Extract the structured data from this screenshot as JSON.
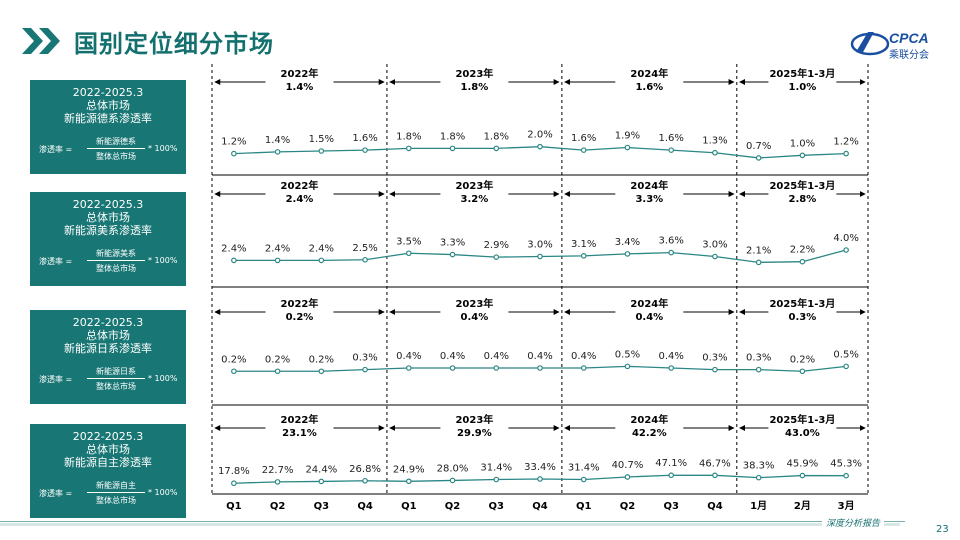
{
  "page": {
    "title": "国别定位细分市场",
    "page_number": "23",
    "footer": "深度分析报告"
  },
  "logo": {
    "text": "CPCA",
    "sub": "乘联分会"
  },
  "colors": {
    "accent": "#187674",
    "line": "#2a8785",
    "title": "#13706e"
  },
  "panels": [
    {
      "id": "de",
      "box": {
        "line1": "2022-2025.3",
        "line2": "总体市场",
        "line3": "新能源德系渗透率",
        "formula_lead": "渗透率 =",
        "numerator": "新能源德系",
        "denominator": "整体总市场",
        "multiplier": "* 100%"
      }
    },
    {
      "id": "us",
      "box": {
        "line1": "2022-2025.3",
        "line2": "总体市场",
        "line3": "新能源美系渗透率",
        "formula_lead": "渗透率 =",
        "numerator": "新能源美系",
        "denominator": "整体总市场",
        "multiplier": "* 100%"
      }
    },
    {
      "id": "jp",
      "box": {
        "line1": "2022-2025.3",
        "line2": "总体市场",
        "line3": "新能源日系渗透率",
        "formula_lead": "渗透率 =",
        "numerator": "新能源日系",
        "denominator": "整体总市场",
        "multiplier": "* 100%"
      }
    },
    {
      "id": "cn",
      "box": {
        "line1": "2022-2025.3",
        "line2": "总体市场",
        "line3": "新能源自主渗透率",
        "formula_lead": "渗透率 =",
        "numerator": "新能源自主",
        "denominator": "整体总市场",
        "multiplier": "* 100%"
      }
    }
  ],
  "chart_data": {
    "type": "line",
    "x": [
      "Q1",
      "Q2",
      "Q3",
      "Q4",
      "Q1",
      "Q2",
      "Q3",
      "Q4",
      "Q1",
      "Q2",
      "Q3",
      "Q4",
      "1月",
      "2月",
      "3月"
    ],
    "periods": [
      "2022年",
      "2023年",
      "2024年",
      "2025年1-3月"
    ],
    "series": [
      {
        "name": "新能源德系渗透率",
        "values": [
          1.2,
          1.4,
          1.5,
          1.6,
          1.8,
          1.8,
          1.8,
          2.0,
          1.6,
          1.9,
          1.6,
          1.3,
          0.7,
          1.0,
          1.2
        ],
        "labels": [
          "1.2%",
          "1.4%",
          "1.5%",
          "1.6%",
          "1.8%",
          "1.8%",
          "1.8%",
          "2.0%",
          "1.6%",
          "1.9%",
          "1.6%",
          "1.3%",
          "0.7%",
          "1.0%",
          "1.2%"
        ],
        "period_values": [
          "1.4%",
          "1.8%",
          "1.6%",
          "1.0%"
        ],
        "ylim": [
          0,
          6
        ]
      },
      {
        "name": "新能源美系渗透率",
        "values": [
          2.4,
          2.4,
          2.4,
          2.5,
          3.5,
          3.3,
          2.9,
          3.0,
          3.1,
          3.4,
          3.6,
          3.0,
          2.1,
          2.2,
          4.0
        ],
        "labels": [
          "2.4%",
          "2.4%",
          "2.4%",
          "2.5%",
          "3.5%",
          "3.3%",
          "2.9%",
          "3.0%",
          "3.1%",
          "3.4%",
          "3.6%",
          "3.0%",
          "2.1%",
          "2.2%",
          "4.0%"
        ],
        "period_values": [
          "2.4%",
          "3.2%",
          "3.3%",
          "2.8%"
        ],
        "ylim": [
          0,
          8
        ]
      },
      {
        "name": "新能源日系渗透率",
        "values": [
          0.2,
          0.2,
          0.2,
          0.3,
          0.4,
          0.4,
          0.4,
          0.4,
          0.4,
          0.5,
          0.4,
          0.3,
          0.3,
          0.2,
          0.5
        ],
        "labels": [
          "0.2%",
          "0.2%",
          "0.2%",
          "0.3%",
          "0.4%",
          "0.4%",
          "0.4%",
          "0.4%",
          "0.4%",
          "0.5%",
          "0.4%",
          "0.3%",
          "0.3%",
          "0.2%",
          "0.5%"
        ],
        "period_values": [
          "0.2%",
          "0.4%",
          "0.4%",
          "0.3%"
        ],
        "ylim": [
          -1.2,
          2
        ]
      },
      {
        "name": "新能源自主渗透率",
        "values": [
          17.8,
          22.7,
          24.4,
          26.8,
          24.9,
          28.0,
          31.4,
          33.4,
          31.4,
          40.7,
          47.1,
          46.7,
          38.3,
          45.9,
          45.3
        ],
        "labels": [
          "17.8%",
          "22.7%",
          "24.4%",
          "26.8%",
          "24.9%",
          "28.0%",
          "31.4%",
          "33.4%",
          "31.4%",
          "40.7%",
          "47.1%",
          "46.7%",
          "38.3%",
          "45.9%",
          "45.3%"
        ],
        "period_values": [
          "23.1%",
          "29.9%",
          "42.2%",
          "43.0%"
        ],
        "ylim": [
          -80,
          110
        ]
      }
    ]
  }
}
